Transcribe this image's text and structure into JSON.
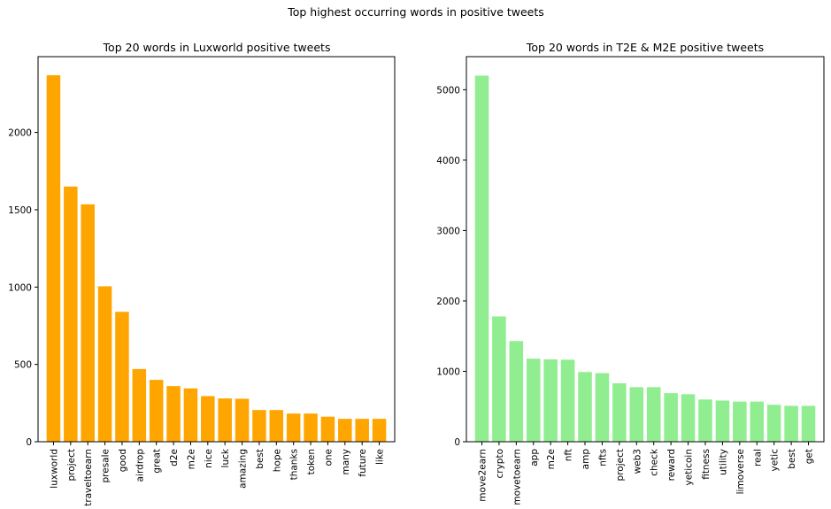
{
  "figure": {
    "suptitle": "Top highest occurring words in positive tweets"
  },
  "chart_data": [
    {
      "type": "bar",
      "title": "Top 20 words in Luxworld positive tweets",
      "xlabel": "",
      "ylabel": "",
      "color": "#FFA500",
      "ylim": [
        0,
        2490
      ],
      "yticks": [
        0,
        500,
        1000,
        1500,
        2000
      ],
      "categories": [
        "luxworld",
        "project",
        "traveltoearn",
        "presale",
        "good",
        "airdrop",
        "great",
        "d2e",
        "m2e",
        "nice",
        "luck",
        "amazing",
        "best",
        "hope",
        "thanks",
        "token",
        "one",
        "many",
        "future",
        "like"
      ],
      "values": [
        2370,
        1650,
        1535,
        1005,
        840,
        470,
        400,
        360,
        345,
        295,
        280,
        278,
        205,
        205,
        182,
        182,
        162,
        148,
        148,
        148
      ],
      "grid": false
    },
    {
      "type": "bar",
      "title": "Top 20 words in T2E & M2E positive tweets",
      "xlabel": "",
      "ylabel": "",
      "color": "#90EE90",
      "ylim": [
        0,
        5470
      ],
      "yticks": [
        0,
        1000,
        2000,
        3000,
        4000,
        5000
      ],
      "categories": [
        "move2earn",
        "crypto",
        "movetoearn",
        "app",
        "m2e",
        "nft",
        "amp",
        "nfts",
        "project",
        "web3",
        "check",
        "reward",
        "yeticoin",
        "fitness",
        "utility",
        "limoverse",
        "real",
        "yetic",
        "best",
        "get"
      ],
      "values": [
        5200,
        1780,
        1430,
        1180,
        1170,
        1165,
        990,
        975,
        830,
        775,
        775,
        690,
        675,
        600,
        585,
        570,
        570,
        525,
        510,
        510
      ],
      "grid": false
    }
  ]
}
